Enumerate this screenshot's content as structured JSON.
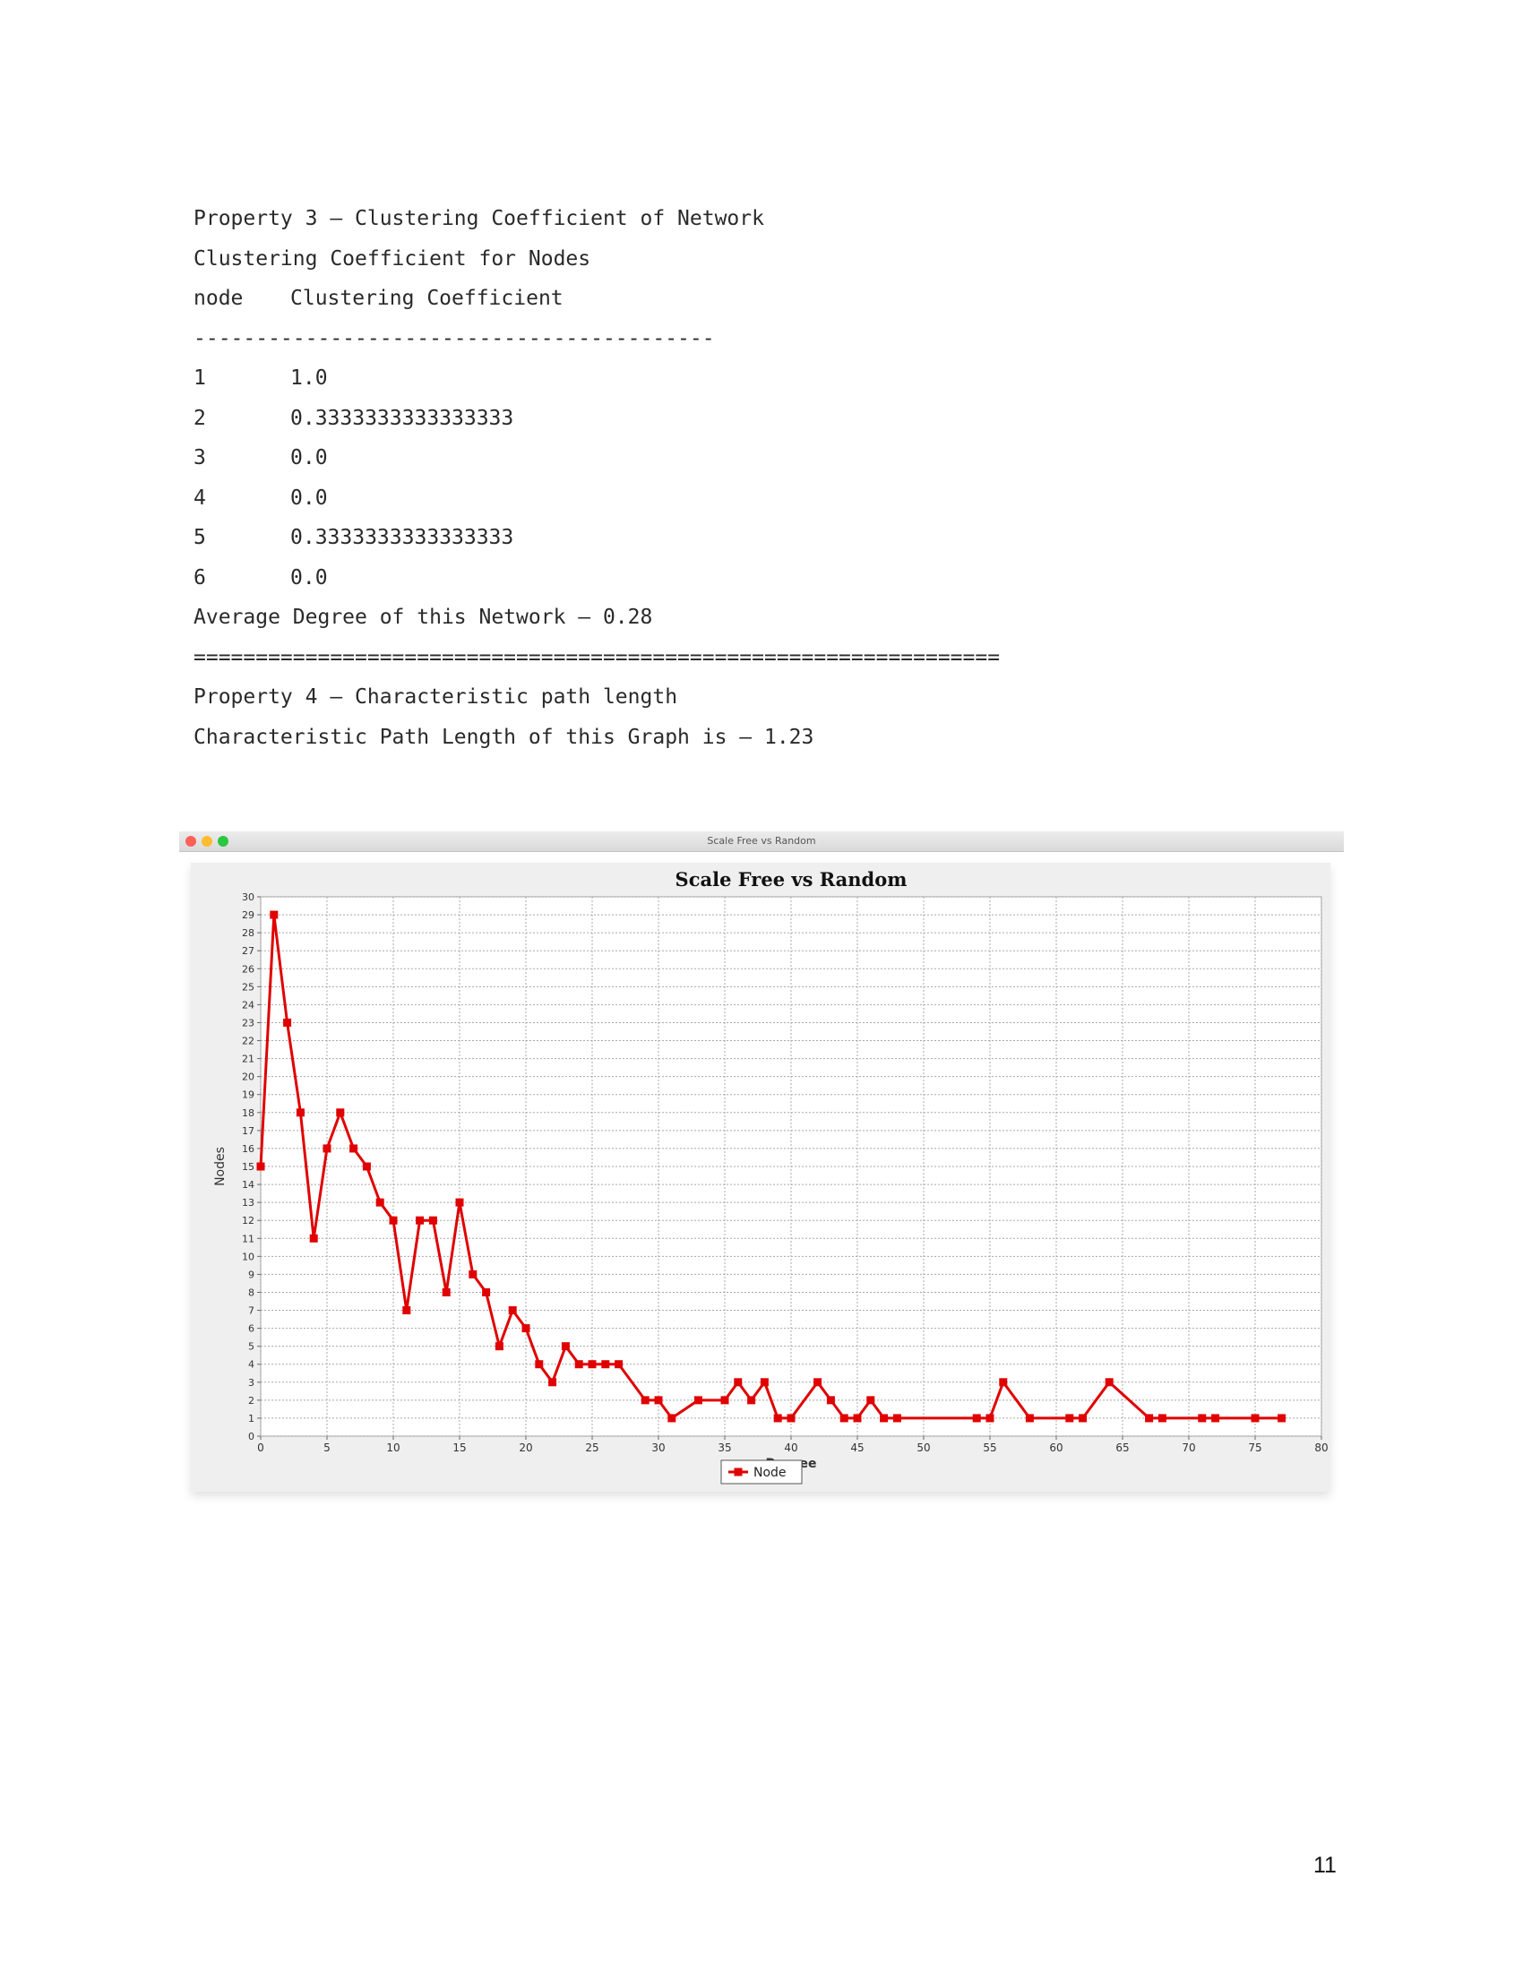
{
  "console": {
    "property3_title": "Property 3 – Clustering Coefficient of Network",
    "cc_heading": "Clustering Coefficient for Nodes",
    "col_node": "node",
    "col_cc": "Clustering Coefficient",
    "sep_short": "------------------------------------------",
    "rows": [
      {
        "node": "1",
        "cc": "1.0"
      },
      {
        "node": "2",
        "cc": "0.3333333333333333"
      },
      {
        "node": "3",
        "cc": "0.0"
      },
      {
        "node": "4",
        "cc": "0.0"
      },
      {
        "node": "5",
        "cc": "0.3333333333333333"
      },
      {
        "node": "6",
        "cc": "0.0"
      }
    ],
    "avg_degree": "Average Degree of this Network – 0.28",
    "sep_long": "=================================================================",
    "property4_title": "Property 4 – Characteristic path length",
    "path_length": "Characteristic Path Length of this Graph is – 1.23"
  },
  "window": {
    "title": "Scale Free vs Random"
  },
  "chart_data": {
    "type": "line",
    "title": "Scale Free vs Random",
    "xlabel": "Degree",
    "ylabel": "Nodes",
    "xlim": [
      0,
      80
    ],
    "ylim": [
      0,
      30
    ],
    "xticks": [
      0,
      5,
      10,
      15,
      20,
      25,
      30,
      35,
      40,
      45,
      50,
      55,
      60,
      65,
      70,
      75,
      80
    ],
    "yticks": [
      0,
      1,
      2,
      3,
      4,
      5,
      6,
      7,
      8,
      9,
      10,
      11,
      12,
      13,
      14,
      15,
      16,
      17,
      18,
      19,
      20,
      21,
      22,
      23,
      24,
      25,
      26,
      27,
      28,
      29,
      30
    ],
    "grid": true,
    "legend": "bottom-center",
    "color": "#e00000",
    "series": [
      {
        "name": "Node",
        "x": [
          0,
          1,
          2,
          3,
          4,
          5,
          6,
          7,
          8,
          9,
          10,
          11,
          12,
          13,
          14,
          15,
          16,
          17,
          18,
          19,
          20,
          21,
          22,
          23,
          24,
          25,
          26,
          27,
          29,
          30,
          31,
          33,
          35,
          36,
          37,
          38,
          39,
          40,
          42,
          43,
          44,
          45,
          46,
          47,
          48,
          54,
          55,
          56,
          58,
          61,
          62,
          64,
          67,
          68,
          71,
          72,
          75,
          77
        ],
        "y": [
          15,
          29,
          23,
          18,
          11,
          16,
          18,
          16,
          15,
          13,
          12,
          7,
          12,
          12,
          8,
          13,
          9,
          8,
          5,
          7,
          6,
          4,
          3,
          5,
          4,
          4,
          4,
          4,
          2,
          2,
          1,
          2,
          2,
          3,
          2,
          3,
          1,
          1,
          3,
          2,
          1,
          1,
          2,
          1,
          1,
          1,
          1,
          3,
          1,
          1,
          1,
          3,
          1,
          1,
          1,
          1,
          1,
          1
        ]
      }
    ]
  },
  "page_number": "11"
}
